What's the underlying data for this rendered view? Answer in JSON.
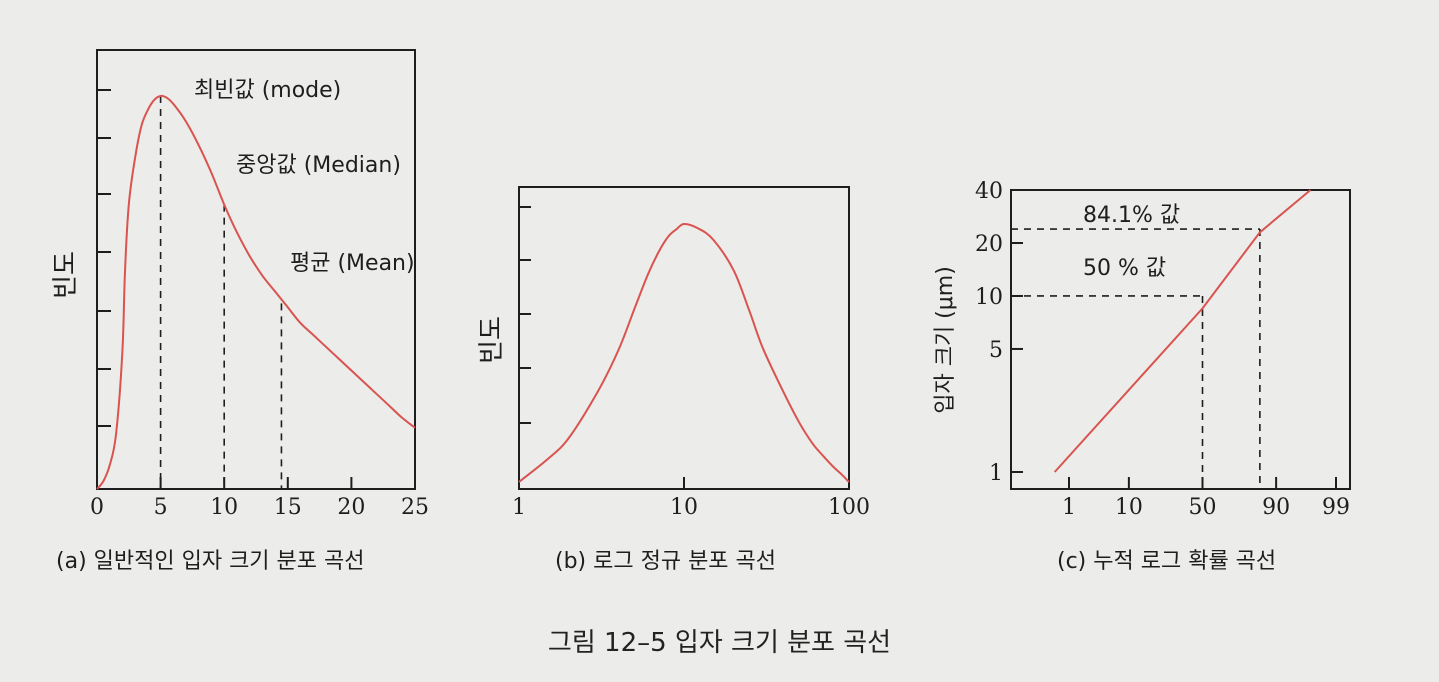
{
  "figure_caption": "그림 12–5   입자 크기 분포 곡선",
  "colors": {
    "curve": "#d9534f",
    "axis": "#1e1e1e",
    "background": "#ececea"
  },
  "chart_data": [
    {
      "id": "a",
      "type": "line",
      "caption": "(a) 일반적인 입자 크기 분포 곡선",
      "ylabel": "빈도",
      "xlabel": "",
      "xlim": [
        0,
        25
      ],
      "ylim": [
        0,
        1
      ],
      "xticks": [
        0,
        5,
        10,
        15,
        20,
        25
      ],
      "xtick_labels": [
        "0",
        "5",
        "10",
        "15",
        "20",
        "25"
      ],
      "grid": false,
      "series": [
        {
          "x": [
            0,
            0.5,
            1,
            1.5,
            2,
            2.2,
            2.5,
            3,
            3.5,
            4,
            4.5,
            5,
            5.5,
            6,
            7,
            8,
            9,
            10,
            11,
            12,
            13,
            14,
            15,
            16,
            17,
            18,
            19,
            20,
            21,
            22,
            23,
            24,
            25
          ],
          "y": [
            0,
            0.02,
            0.06,
            0.14,
            0.35,
            0.55,
            0.72,
            0.84,
            0.92,
            0.96,
            0.985,
            0.995,
            0.99,
            0.975,
            0.93,
            0.87,
            0.8,
            0.72,
            0.65,
            0.59,
            0.54,
            0.5,
            0.46,
            0.42,
            0.39,
            0.36,
            0.33,
            0.3,
            0.27,
            0.24,
            0.21,
            0.18,
            0.155
          ]
        }
      ],
      "markers": [
        {
          "x": 5,
          "y": 0.995,
          "label": "최빈값 (mode)"
        },
        {
          "x": 10,
          "y": 0.72,
          "label": "중앙값 (Median)"
        },
        {
          "x": 14.5,
          "y": 0.47,
          "label": "평균 (Mean)"
        }
      ]
    },
    {
      "id": "b",
      "type": "line",
      "caption": "(b) 로그 정규 분포 곡선",
      "ylabel": "빈도",
      "xlabel": "",
      "xscale": "log",
      "xlim": [
        1,
        100
      ],
      "ylim": [
        0,
        1
      ],
      "xticks": [
        1,
        10,
        100
      ],
      "xtick_labels": [
        "1",
        "10",
        "100"
      ],
      "grid": false,
      "series": [
        {
          "x": [
            1,
            1.5,
            2,
            3,
            4,
            5,
            6,
            7,
            8,
            9,
            10,
            12,
            15,
            20,
            25,
            30,
            40,
            50,
            60,
            70,
            80,
            90,
            100
          ],
          "y": [
            0,
            0.09,
            0.17,
            0.35,
            0.51,
            0.67,
            0.8,
            0.89,
            0.95,
            0.98,
            1,
            0.985,
            0.94,
            0.82,
            0.66,
            0.52,
            0.35,
            0.23,
            0.15,
            0.1,
            0.06,
            0.03,
            0
          ]
        }
      ]
    },
    {
      "id": "c",
      "type": "line",
      "caption": "(c) 누적 로그 확률 곡선",
      "ylabel": "입자 크기 (μm)",
      "xlabel": "",
      "xscale": "probability",
      "yscale": "log",
      "xlim": [
        0.1,
        99
      ],
      "ylim": [
        1,
        40
      ],
      "xticks": [
        1,
        10,
        50,
        90,
        99
      ],
      "xtick_labels": [
        "1",
        "10",
        "50",
        "90",
        "99"
      ],
      "yticks": [
        1,
        5,
        10,
        20,
        40
      ],
      "ytick_labels": [
        "1",
        "5",
        "10",
        "20",
        "40"
      ],
      "grid": false,
      "series": [
        {
          "x": [
            0.5,
            50,
            84.1,
            97
          ],
          "y": [
            1,
            8.5,
            23,
            40
          ]
        }
      ],
      "reference_lines": [
        {
          "percent": 50,
          "size": 10,
          "label": "50 % 값"
        },
        {
          "percent": 84.1,
          "size": 24,
          "label": "84.1% 값"
        }
      ]
    }
  ]
}
